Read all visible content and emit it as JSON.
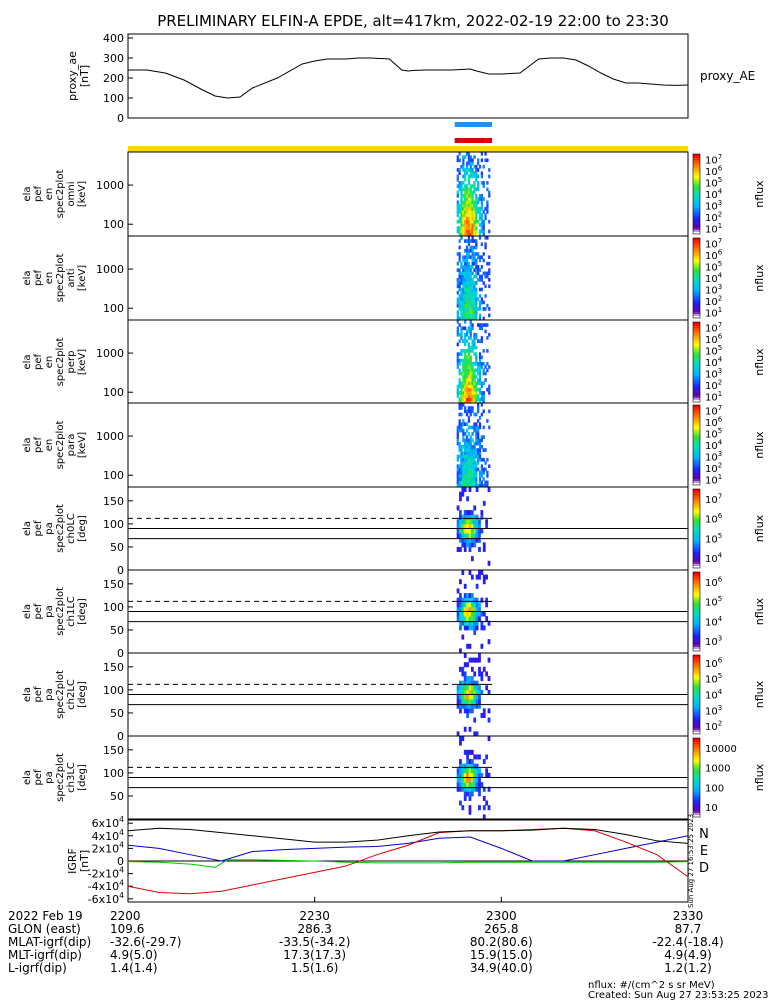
{
  "title": "PRELIMINARY ELFIN-A EPDE, alt=417km, 2022-02-19 22:00 to 23:30",
  "colors": {
    "yellow_bar": "#ffd700",
    "blue_bar": "#1e90ff",
    "red_bar": "#e00000",
    "N": "#0000cc",
    "E": "#00cc00",
    "D": "#dd0000"
  },
  "time_axis": {
    "range_minutes": [
      0,
      90
    ],
    "tick_labels": [
      "2200",
      "2230",
      "2300",
      "2330"
    ],
    "tick_minutes": [
      0,
      30,
      60,
      90
    ],
    "science_zone_minutes": [
      52.5,
      58.5
    ]
  },
  "panels": {
    "proxy_ae": {
      "ylabel": "proxy_ae\n[nT]",
      "right_label": "proxy_AE",
      "yticks": [
        "0",
        "100",
        "200",
        "300",
        "400"
      ],
      "ylim": [
        0,
        420
      ]
    },
    "spectra": [
      {
        "ylabel": [
          "ela",
          "pef",
          "en",
          "spec2plot",
          "omni",
          "[keV]"
        ],
        "yticks": [
          "100",
          "1000"
        ],
        "cbar_ticks": [
          "10^7",
          "10^6",
          "10^5",
          "10^4",
          "10^3",
          "10^2",
          "10^1"
        ],
        "cbar_label": "nflux"
      },
      {
        "ylabel": [
          "ela",
          "pef",
          "en",
          "spec2plot",
          "anti",
          "[keV]"
        ],
        "yticks": [
          "100",
          "1000"
        ],
        "cbar_ticks": [
          "10^7",
          "10^6",
          "10^5",
          "10^4",
          "10^3",
          "10^2",
          "10^1"
        ],
        "cbar_label": "nflux"
      },
      {
        "ylabel": [
          "ela",
          "pef",
          "en",
          "spec2plot",
          "perp",
          "[keV]"
        ],
        "yticks": [
          "100",
          "1000"
        ],
        "cbar_ticks": [
          "10^7",
          "10^6",
          "10^5",
          "10^4",
          "10^3",
          "10^2",
          "10^1"
        ],
        "cbar_label": "nflux"
      },
      {
        "ylabel": [
          "ela",
          "pef",
          "en",
          "spec2plot",
          "para",
          "[keV]"
        ],
        "yticks": [
          "100",
          "1000"
        ],
        "cbar_ticks": [
          "10^7",
          "10^6",
          "10^5",
          "10^4",
          "10^3",
          "10^2",
          "10^1"
        ],
        "cbar_label": "nflux"
      }
    ],
    "pitch": [
      {
        "ylabel": [
          "ela",
          "pef",
          "pa",
          "spec2plot",
          "ch0LC",
          "[deg]"
        ],
        "yticks": [
          "0",
          "50",
          "100",
          "150"
        ],
        "cbar_ticks": [
          "10^7",
          "10^6",
          "10^5",
          "10^4"
        ],
        "cbar_label": "nflux"
      },
      {
        "ylabel": [
          "ela",
          "pef",
          "pa",
          "spec2plot",
          "ch1LC",
          "[deg]"
        ],
        "yticks": [
          "0",
          "50",
          "100",
          "150"
        ],
        "cbar_ticks": [
          "10^6",
          "10^5",
          "10^4",
          "10^3"
        ],
        "cbar_label": "nflux"
      },
      {
        "ylabel": [
          "ela",
          "pef",
          "pa",
          "spec2plot",
          "ch2LC",
          "[deg]"
        ],
        "yticks": [
          "0",
          "50",
          "100",
          "150"
        ],
        "cbar_ticks": [
          "10^6",
          "10^5",
          "10^4",
          "10^3",
          "10^2"
        ],
        "cbar_label": "nflux"
      },
      {
        "ylabel": [
          "ela",
          "pef",
          "pa",
          "spec2plot",
          "ch3LC",
          "[deg]"
        ],
        "yticks": [
          "50",
          "100",
          "150"
        ],
        "cbar_ticks": [
          "10000",
          "1000",
          "100",
          "10"
        ],
        "cbar_label": "nflux"
      }
    ],
    "igrf": {
      "ylabel": "IGRF\n[nT]",
      "yticks": [
        "-6x10^4",
        "-4x10^4",
        "-2x10^4",
        "0",
        "2x10^4",
        "4x10^4",
        "6x10^4"
      ],
      "legend": [
        "N",
        "E",
        "D"
      ],
      "side_stamp": "Sun Aug 27 16:53:25 2023"
    }
  },
  "chart_data": {
    "type": "line",
    "title": "PRELIMINARY ELFIN-A EPDE, alt=417km, 2022-02-19 22:00 to 23:30",
    "x_unit": "minutes after 2022-02-19 22:00",
    "xlim": [
      0,
      90
    ],
    "series": [
      {
        "name": "proxy_AE",
        "x": [
          0,
          3,
          6,
          9,
          12,
          14,
          16,
          18,
          20,
          24,
          28,
          30,
          32,
          35,
          37,
          39,
          42,
          44,
          45,
          46,
          48,
          52,
          55,
          56,
          58,
          60,
          63,
          66,
          68,
          70,
          72,
          74,
          76,
          78,
          80,
          82,
          84,
          86,
          88,
          90
        ],
        "y": [
          240,
          240,
          225,
          190,
          140,
          110,
          100,
          105,
          150,
          200,
          270,
          285,
          295,
          295,
          300,
          300,
          295,
          240,
          235,
          238,
          240,
          240,
          245,
          235,
          220,
          220,
          225,
          295,
          300,
          300,
          290,
          260,
          225,
          195,
          175,
          175,
          170,
          165,
          163,
          165
        ]
      },
      {
        "name": "N",
        "x": [
          0,
          5,
          10,
          15,
          20,
          25,
          30,
          35,
          40,
          45,
          50,
          55,
          60,
          65,
          70,
          75,
          80,
          85,
          90
        ],
        "y": [
          25000,
          20000,
          10000,
          0,
          15000,
          18000,
          20000,
          22000,
          23000,
          28000,
          36000,
          38000,
          20000,
          0,
          0,
          10000,
          20000,
          30000,
          40000
        ]
      },
      {
        "name": "E",
        "x": [
          0,
          5,
          10,
          14,
          16,
          20,
          25,
          30,
          35,
          40,
          45,
          50,
          55,
          60,
          65,
          70,
          75,
          80,
          85,
          90
        ],
        "y": [
          -1000,
          -2000,
          -5000,
          -10000,
          2000,
          2000,
          1000,
          0,
          -2000,
          -3000,
          -3000,
          -3000,
          -2000,
          -2000,
          -2000,
          -2000,
          -2000,
          -2000,
          -2000,
          -1000
        ]
      },
      {
        "name": "D",
        "x": [
          0,
          5,
          10,
          15,
          20,
          25,
          30,
          35,
          40,
          45,
          50,
          55,
          60,
          65,
          70,
          75,
          80,
          85,
          90
        ],
        "y": [
          -40000,
          -50000,
          -52000,
          -48000,
          -38000,
          -28000,
          -18000,
          -8000,
          10000,
          25000,
          45000,
          48000,
          48000,
          50000,
          52000,
          48000,
          30000,
          10000,
          -25000
        ]
      },
      {
        "name": "Btot",
        "x": [
          0,
          5,
          10,
          15,
          20,
          25,
          30,
          35,
          40,
          45,
          50,
          55,
          60,
          65,
          70,
          75,
          80,
          85,
          90
        ],
        "y": [
          48000,
          52000,
          50000,
          45000,
          40000,
          35000,
          30000,
          30000,
          33000,
          40000,
          46000,
          48000,
          48000,
          49000,
          52000,
          50000,
          42000,
          32000,
          28000
        ]
      }
    ],
    "spectrogram_note": "flux present only near 22:52-22:58 in all spectrogram panels"
  },
  "ephemeris": {
    "rows": [
      {
        "label": "2022 Feb 19",
        "values": [
          "2200",
          "2230",
          "2300",
          "2330"
        ]
      },
      {
        "label": "GLON (east)",
        "values": [
          "109.6",
          "286.3",
          "265.8",
          "87.7"
        ]
      },
      {
        "label": "MLAT-igrf(dip)",
        "values": [
          "-32.6(-29.7)",
          "-33.5(-34.2)",
          "80.2(80.6)",
          "-22.4(-18.4)"
        ]
      },
      {
        "label": "MLT-igrf(dip)",
        "values": [
          "4.9(5.0)",
          "17.3(17.3)",
          "15.9(15.0)",
          "4.9(4.9)"
        ]
      },
      {
        "label": "L-igrf(dip)",
        "values": [
          "1.4(1.4)",
          "1.5(1.6)",
          "34.9(40.0)",
          "1.2(1.2)"
        ]
      }
    ]
  },
  "footer": {
    "units": "nflux: #/(cm^2 s sr MeV)",
    "created": "Created: Sun Aug 27 23:53:25 2023"
  }
}
